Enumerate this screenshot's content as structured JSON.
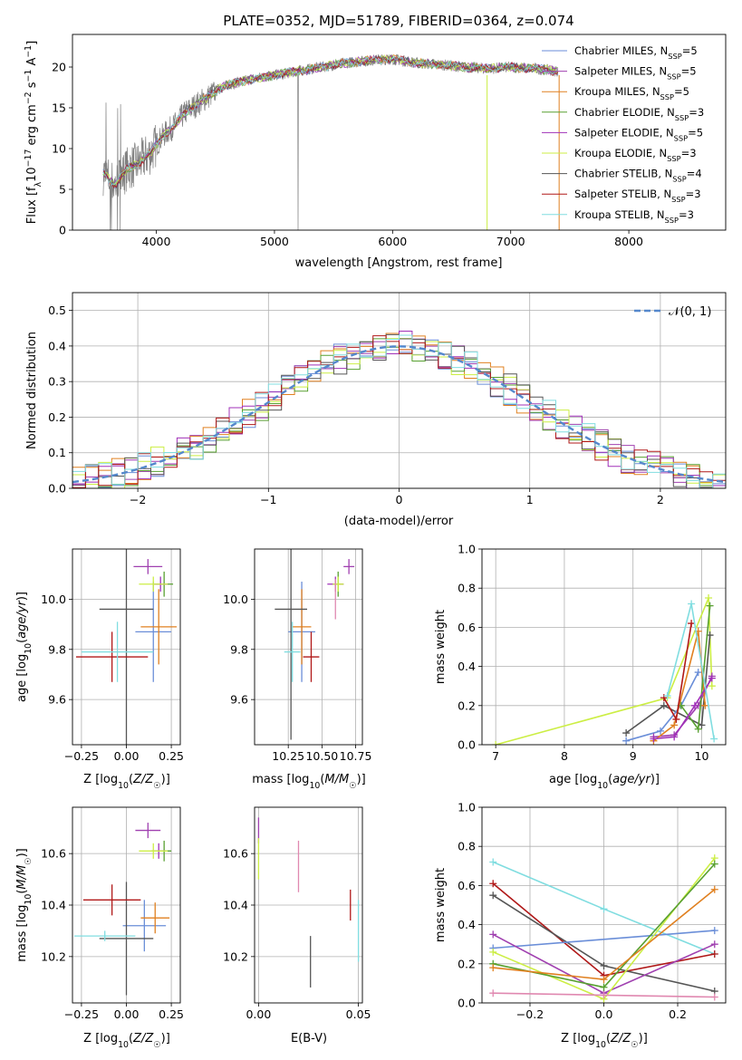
{
  "figure_title": "PLATE=0352, MJD=51789, FIBERID=0364, z=0.074",
  "colors": {
    "Chabrier MILES": "#6a8ed8",
    "Salpeter MILES": "#a040b0",
    "Kroupa MILES": "#e08020",
    "Chabrier ELODIE": "#58a030",
    "Salpeter ELODIE": "#a030b8",
    "Kroupa ELODIE": "#ccee44",
    "Chabrier STELIB": "#555555",
    "Salpeter STELIB": "#b01818",
    "Kroupa STELIB": "#80dde0",
    "data": "#808080",
    "normal": "#5588cc",
    "pink": "#e088b0",
    "grid": "#b0b0b0"
  },
  "chart_data": [
    {
      "type": "line",
      "xlabel": "wavelength [Angstrom, rest frame]",
      "ylabel": "Flux [f_λ 10^-17 erg cm^-2 s^-1 A^-1]",
      "xlim": [
        3290,
        8820
      ],
      "ylim": [
        0,
        24
      ],
      "xticks": [
        4000,
        5000,
        6000,
        7000,
        8000
      ],
      "yticks": [
        0,
        5,
        10,
        15,
        20
      ],
      "grid": false,
      "legend_position": "top-right",
      "series": [
        {
          "name": "Chabrier MILES, N_SSP=5"
        },
        {
          "name": "Salpeter MILES, N_SSP=5"
        },
        {
          "name": "Kroupa MILES, N_SSP=5"
        },
        {
          "name": "Chabrier ELODIE, N_SSP=3"
        },
        {
          "name": "Salpeter ELODIE, N_SSP=5"
        },
        {
          "name": "Kroupa ELODIE, N_SSP=3"
        },
        {
          "name": "Chabrier STELIB, N_SSP=4"
        },
        {
          "name": "Salpeter STELIB, N_SSP=3"
        },
        {
          "name": "Kroupa STELIB, N_SSP=3"
        }
      ],
      "approx_model_curve": {
        "x": [
          3550,
          3650,
          3750,
          3850,
          3950,
          4050,
          4150,
          4250,
          4350,
          4450,
          4550,
          4650,
          4800,
          5000,
          5200,
          5400,
          5600,
          5800,
          6000,
          6200,
          6400,
          6600,
          6800,
          7000,
          7200,
          7400
        ],
        "y": [
          7.0,
          5.5,
          7.5,
          8.2,
          9.5,
          11.5,
          12.8,
          14.5,
          15.5,
          16.5,
          17.5,
          18.0,
          18.5,
          19.0,
          19.5,
          20.0,
          20.5,
          20.8,
          21.0,
          20.5,
          20.3,
          20.0,
          19.8,
          20.0,
          19.8,
          19.5
        ]
      }
    },
    {
      "type": "line",
      "xlabel": "(data-model)/error",
      "ylabel": "Normed distribution",
      "xlim": [
        -2.5,
        2.5
      ],
      "ylim": [
        0,
        0.55
      ],
      "xticks": [
        -2,
        -1,
        0,
        1,
        2
      ],
      "yticks": [
        0.0,
        0.1,
        0.2,
        0.3,
        0.4,
        0.5
      ],
      "grid": true,
      "legend_position": "top-right",
      "legend": [
        "𝒩(0, 1)"
      ],
      "histogram_bin_width": 0.1,
      "histogram_shape": "normal density with scatter"
    },
    {
      "type": "scatter",
      "xlabel": "Z [log₁₀(Z/Z☉)]",
      "ylabel": "age  [log₁₀(age/yr)]",
      "xlim": [
        -0.3,
        0.3
      ],
      "ylim": [
        9.42,
        10.2
      ],
      "xticks": [
        -0.25,
        0.0,
        0.25
      ],
      "yticks": [
        9.6,
        9.8,
        10.0
      ],
      "grid": true,
      "points": [
        {
          "series": "Chabrier MILES",
          "x": 0.15,
          "y": 9.87,
          "xerr": 0.1,
          "yerr": 0.2
        },
        {
          "series": "Salpeter MILES",
          "x": 0.12,
          "y": 10.13,
          "xerr": 0.08,
          "yerr": 0.03
        },
        {
          "series": "Kroupa MILES",
          "x": 0.18,
          "y": 9.89,
          "xerr": 0.1,
          "yerr": 0.15
        },
        {
          "series": "Chabrier ELODIE",
          "x": 0.21,
          "y": 10.06,
          "xerr": 0.05,
          "yerr": 0.05
        },
        {
          "series": "Salpeter ELODIE",
          "x": 0.19,
          "y": 10.06,
          "xerr": 0.04,
          "yerr": 0.03
        },
        {
          "series": "Kroupa ELODIE",
          "x": 0.15,
          "y": 10.06,
          "xerr": 0.08,
          "yerr": 0.03
        },
        {
          "series": "Chabrier STELIB",
          "x": 0.0,
          "y": 9.96,
          "xerr": 0.15,
          "yerr": 0.55
        },
        {
          "series": "Salpeter STELIB",
          "x": -0.08,
          "y": 9.77,
          "xerr": 0.2,
          "yerr": 0.1
        },
        {
          "series": "Kroupa STELIB",
          "x": -0.05,
          "y": 9.79,
          "xerr": 0.2,
          "yerr": 0.12
        }
      ]
    },
    {
      "type": "scatter",
      "xlabel": "mass [log₁₀(M/M☉)]",
      "ylabel": "",
      "xlim": [
        10.0,
        10.8
      ],
      "ylim": [
        9.42,
        10.2
      ],
      "xticks": [
        10.25,
        10.5,
        10.75
      ],
      "yticks": [
        9.6,
        9.8,
        10.0
      ],
      "grid": true,
      "points": [
        {
          "series": "Chabrier MILES",
          "x": 10.35,
          "y": 9.87,
          "xerr": 0.1,
          "yerr": 0.2
        },
        {
          "series": "Salpeter MILES",
          "x": 10.7,
          "y": 10.13,
          "xerr": 0.04,
          "yerr": 0.03
        },
        {
          "series": "Kroupa MILES",
          "x": 10.35,
          "y": 9.89,
          "xerr": 0.07,
          "yerr": 0.15
        },
        {
          "series": "Chabrier ELODIE",
          "x": 10.62,
          "y": 10.06,
          "xerr": 0.04,
          "yerr": 0.05
        },
        {
          "series": "Salpeter ELODIE",
          "x": 10.6,
          "y": 10.06,
          "xerr": 0.06,
          "yerr": 0.03
        },
        {
          "series": "Kroupa ELODIE",
          "x": 10.62,
          "y": 10.06,
          "xerr": 0.04,
          "yerr": 0.03
        },
        {
          "series": "Chabrier STELIB",
          "x": 10.27,
          "y": 9.96,
          "xerr": 0.12,
          "yerr": 0.52
        },
        {
          "series": "Salpeter STELIB",
          "x": 10.42,
          "y": 9.77,
          "xerr": 0.06,
          "yerr": 0.1
        },
        {
          "series": "Kroupa STELIB",
          "x": 10.28,
          "y": 9.79,
          "xerr": 0.06,
          "yerr": 0.12
        },
        {
          "series": "pink",
          "x": 10.6,
          "y": 10.0,
          "xerr": 0.0,
          "yerr": 0.08
        }
      ]
    },
    {
      "type": "line",
      "xlabel": "age  [log₁₀(age/yr)]",
      "ylabel": "mass weight",
      "xlim": [
        6.8,
        10.35
      ],
      "ylim": [
        0,
        1.0
      ],
      "xticks": [
        7,
        8,
        9,
        10
      ],
      "yticks": [
        0.0,
        0.2,
        0.4,
        0.6,
        0.8,
        1.0
      ],
      "grid": true,
      "series": [
        {
          "series": "Kroupa ELODIE",
          "x": [
            7.0,
            9.5,
            10.1,
            10.15
          ],
          "y": [
            0.0,
            0.24,
            0.75,
            0.3
          ]
        },
        {
          "series": "Chabrier STELIB",
          "x": [
            8.9,
            9.45,
            10.0,
            10.12
          ],
          "y": [
            0.06,
            0.2,
            0.1,
            0.56
          ]
        },
        {
          "series": "Chabrier MILES",
          "x": [
            8.9,
            9.4,
            9.7,
            9.95
          ],
          "y": [
            0.02,
            0.07,
            0.2,
            0.37
          ]
        },
        {
          "series": "Salpeter MILES",
          "x": [
            9.3,
            9.6,
            9.95,
            10.15
          ],
          "y": [
            0.04,
            0.05,
            0.2,
            0.35
          ]
        },
        {
          "series": "Kroupa MILES",
          "x": [
            9.3,
            9.6,
            9.95,
            10.05
          ],
          "y": [
            0.02,
            0.1,
            0.58,
            0.2
          ]
        },
        {
          "series": "Chabrier ELODIE",
          "x": [
            9.7,
            9.95,
            10.12
          ],
          "y": [
            0.2,
            0.08,
            0.71
          ]
        },
        {
          "series": "Salpeter ELODIE",
          "x": [
            9.3,
            9.6,
            9.9,
            10.15
          ],
          "y": [
            0.03,
            0.04,
            0.2,
            0.34
          ]
        },
        {
          "series": "Salpeter STELIB",
          "x": [
            9.45,
            9.63,
            9.85
          ],
          "y": [
            0.24,
            0.13,
            0.62
          ]
        },
        {
          "series": "Kroupa STELIB",
          "x": [
            9.5,
            9.85,
            10.18
          ],
          "y": [
            0.25,
            0.72,
            0.03
          ]
        }
      ]
    },
    {
      "type": "scatter",
      "xlabel": "Z [log₁₀(Z/Z☉)]",
      "ylabel": "mass [log₁₀(M/M☉)]",
      "xlim": [
        -0.3,
        0.3
      ],
      "ylim": [
        10.02,
        10.78
      ],
      "xticks": [
        -0.25,
        0.0,
        0.25
      ],
      "yticks": [
        10.2,
        10.4,
        10.6
      ],
      "grid": true,
      "points": [
        {
          "series": "Chabrier MILES",
          "x": 0.1,
          "y": 10.32,
          "xerr": 0.12,
          "yerr": 0.1
        },
        {
          "series": "Salpeter MILES",
          "x": 0.12,
          "y": 10.69,
          "xerr": 0.07,
          "yerr": 0.03
        },
        {
          "series": "Kroupa MILES",
          "x": 0.16,
          "y": 10.35,
          "xerr": 0.08,
          "yerr": 0.06
        },
        {
          "series": "Chabrier ELODIE",
          "x": 0.21,
          "y": 10.61,
          "xerr": 0.04,
          "yerr": 0.04
        },
        {
          "series": "Salpeter ELODIE",
          "x": 0.18,
          "y": 10.61,
          "xerr": 0.04,
          "yerr": 0.03
        },
        {
          "series": "Kroupa ELODIE",
          "x": 0.15,
          "y": 10.61,
          "xerr": 0.08,
          "yerr": 0.03
        },
        {
          "series": "Chabrier STELIB",
          "x": 0.0,
          "y": 10.27,
          "xerr": 0.15,
          "yerr": 0.22
        },
        {
          "series": "Salpeter STELIB",
          "x": -0.08,
          "y": 10.42,
          "xerr": 0.16,
          "yerr": 0.06
        },
        {
          "series": "Kroupa STELIB",
          "x": -0.12,
          "y": 10.28,
          "xerr": 0.17,
          "yerr": 0.02
        }
      ]
    },
    {
      "type": "scatter",
      "xlabel": "E(B-V)",
      "ylabel": "",
      "xlim": [
        -0.002,
        0.052
      ],
      "ylim": [
        10.02,
        10.78
      ],
      "xticks": [
        0.0,
        0.05
      ],
      "yticks": [
        10.2,
        10.4,
        10.6
      ],
      "grid": true,
      "points": [
        {
          "series": "Salpeter MILES",
          "x": 0.0,
          "y": 10.69,
          "xerr": 0,
          "yerr": 0.05
        },
        {
          "series": "Kroupa ELODIE",
          "x": 0.0,
          "y": 10.58,
          "xerr": 0,
          "yerr": 0.08
        },
        {
          "series": "pink",
          "x": 0.02,
          "y": 10.55,
          "xerr": 0,
          "yerr": 0.1
        },
        {
          "series": "Chabrier STELIB",
          "x": 0.026,
          "y": 10.18,
          "xerr": 0,
          "yerr": 0.1
        },
        {
          "series": "Salpeter STELIB",
          "x": 0.046,
          "y": 10.4,
          "xerr": 0,
          "yerr": 0.06
        },
        {
          "series": "Kroupa STELIB",
          "x": 0.05,
          "y": 10.3,
          "xerr": 0,
          "yerr": 0.12
        }
      ]
    },
    {
      "type": "line",
      "xlabel": "Z [log₁₀(Z/Z☉)]",
      "ylabel": "mass weight",
      "xlim": [
        -0.33,
        0.33
      ],
      "ylim": [
        0,
        1.0
      ],
      "xticks": [
        -0.2,
        0.0,
        0.2
      ],
      "yticks": [
        0.0,
        0.2,
        0.4,
        0.6,
        0.8,
        1.0
      ],
      "grid": true,
      "series": [
        {
          "series": "Kroupa STELIB",
          "x": [
            -0.3,
            0.0,
            0.3
          ],
          "y": [
            0.72,
            0.48,
            0.25
          ]
        },
        {
          "series": "Salpeter STELIB",
          "x": [
            -0.3,
            0.0,
            0.3
          ],
          "y": [
            0.61,
            0.14,
            0.25
          ]
        },
        {
          "series": "Chabrier STELIB",
          "x": [
            -0.3,
            0.0,
            0.3
          ],
          "y": [
            0.55,
            0.19,
            0.06
          ]
        },
        {
          "series": "Chabrier MILES",
          "x": [
            -0.3,
            0.3
          ],
          "y": [
            0.28,
            0.37
          ]
        },
        {
          "series": "Salpeter MILES",
          "x": [
            -0.3,
            0.0,
            0.3
          ],
          "y": [
            0.35,
            0.05,
            0.3
          ]
        },
        {
          "series": "Kroupa ELODIE",
          "x": [
            -0.3,
            0.0,
            0.3
          ],
          "y": [
            0.26,
            0.02,
            0.74
          ]
        },
        {
          "series": "Chabrier ELODIE",
          "x": [
            -0.3,
            0.0,
            0.3
          ],
          "y": [
            0.2,
            0.08,
            0.71
          ]
        },
        {
          "series": "Kroupa MILES",
          "x": [
            -0.3,
            0.0,
            0.3
          ],
          "y": [
            0.18,
            0.12,
            0.58
          ]
        },
        {
          "series": "pink",
          "x": [
            -0.3,
            0.0,
            0.3
          ],
          "y": [
            0.05,
            0.04,
            0.03
          ]
        }
      ]
    }
  ]
}
